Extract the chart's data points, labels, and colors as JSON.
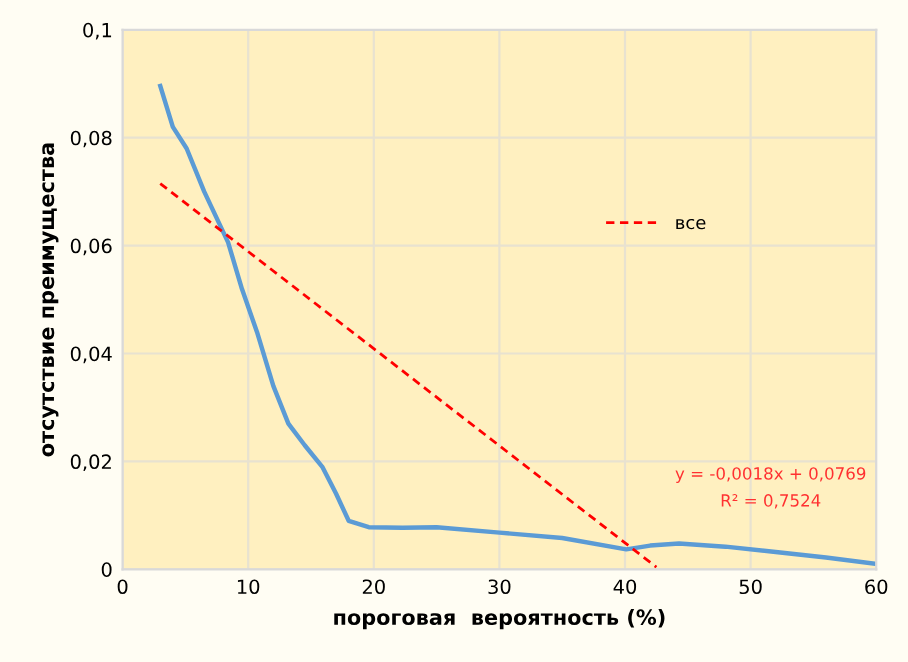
{
  "chart_data": {
    "type": "line",
    "xlabel": "пороговая  вероятность (%)",
    "ylabel": "отсутствие преимущества",
    "xlim": [
      0,
      60
    ],
    "xticks": [
      0,
      10,
      20,
      30,
      40,
      50,
      60
    ],
    "ylim": [
      0,
      0.1
    ],
    "yticks": [
      {
        "value": 0,
        "label": "0"
      },
      {
        "value": 0.02,
        "label": "0,02"
      },
      {
        "value": 0.04,
        "label": "0,04"
      },
      {
        "value": 0.06,
        "label": "0,06"
      },
      {
        "value": 0.08,
        "label": "0,08"
      },
      {
        "value": 0.1,
        "label": "0,1"
      }
    ],
    "series": [
      {
        "color": "#5b9bd5",
        "x": [
          3,
          4,
          5.1,
          6.5,
          8.4,
          9.5,
          10.7,
          12,
          13.2,
          14.5,
          15.9,
          17,
          18,
          19.6,
          22.3,
          25,
          30,
          35,
          40.1,
          42,
          44.3,
          48,
          52,
          56,
          60
        ],
        "values": [
          0.0896,
          0.082,
          0.078,
          0.07,
          0.0606,
          0.052,
          0.044,
          0.034,
          0.027,
          0.023,
          0.019,
          0.014,
          0.009,
          0.0078,
          0.0077,
          0.0078,
          0.0068,
          0.0058,
          0.0037,
          0.0044,
          0.0048,
          0.0042,
          0.0032,
          0.0022,
          0.001
        ]
      },
      {
        "name": "все",
        "color": "#ff0000",
        "line_style": "dashed",
        "x": [
          3,
          42.5
        ],
        "values": [
          0.0715,
          0.0004
        ]
      }
    ],
    "annotations": [
      "y = -0,0018x + 0,0769",
      "R² = 0,7524"
    ],
    "grid": true,
    "legend": "right"
  }
}
